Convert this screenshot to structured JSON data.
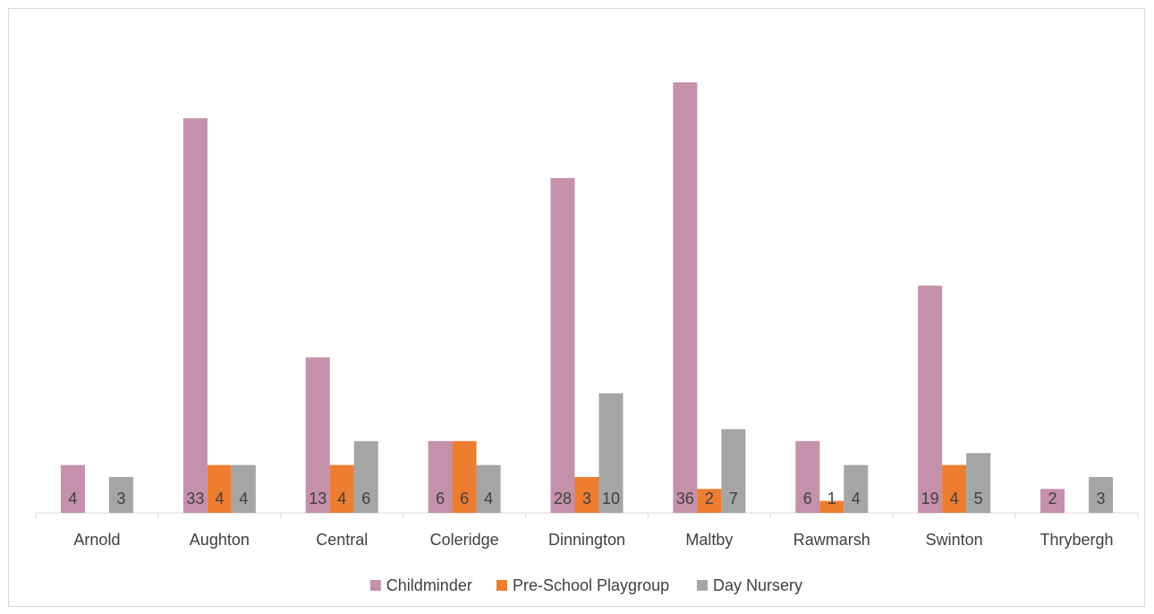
{
  "chart_data": {
    "type": "bar",
    "title": "",
    "xlabel": "",
    "ylabel": "",
    "ylim": [
      0,
      37
    ],
    "grid": false,
    "legend_position": "bottom",
    "categories": [
      "Arnold",
      "Aughton",
      "Central",
      "Coleridge",
      "Dinnington",
      "Maltby",
      "Rawmarsh",
      "Swinton",
      "Thrybergh"
    ],
    "series": [
      {
        "name": "Childminder",
        "color": "#c490aa",
        "values": [
          4,
          33,
          13,
          6,
          28,
          36,
          6,
          19,
          2
        ]
      },
      {
        "name": "Pre-School Playgroup",
        "color": "#ed7d31",
        "values": [
          0,
          4,
          4,
          6,
          3,
          2,
          1,
          4,
          0
        ]
      },
      {
        "name": "Day Nursery",
        "color": "#a5a5a5",
        "values": [
          3,
          4,
          6,
          4,
          10,
          7,
          4,
          5,
          3
        ]
      }
    ]
  }
}
